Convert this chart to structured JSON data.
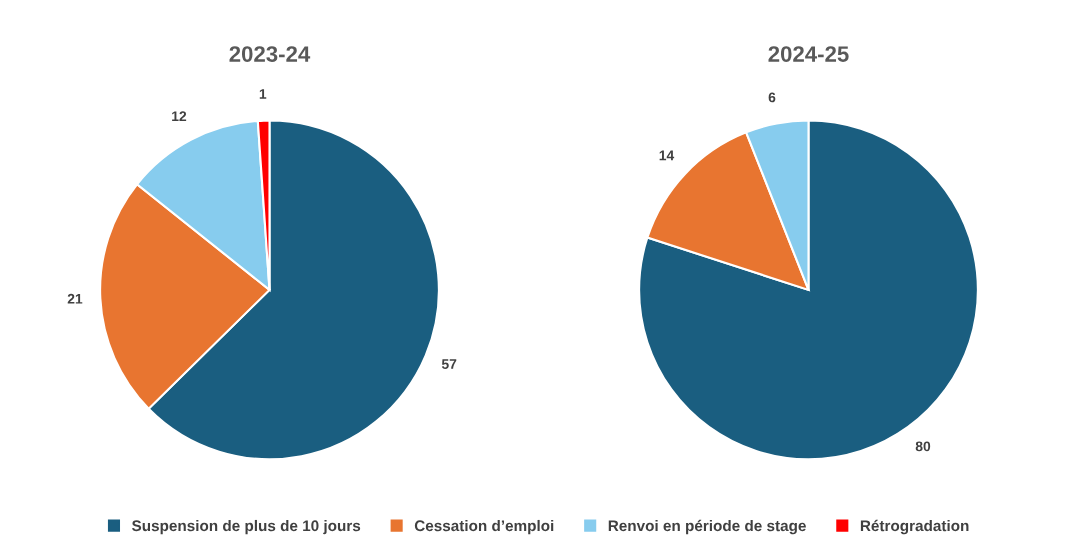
{
  "chart_data": [
    {
      "type": "pie",
      "title": "2023-24",
      "categories": [
        "Suspension de plus de 10 jours",
        "Cessation d’emploi",
        "Renvoi en période de stage",
        "Rétrogradation"
      ],
      "values": [
        57,
        21,
        12,
        1
      ],
      "colors": [
        "#1a5e80",
        "#e87530",
        "#87ccee",
        "#ff0000"
      ],
      "data_labels": true,
      "legend": "bottom"
    },
    {
      "type": "pie",
      "title": "2024-25",
      "categories": [
        null,
        null,
        null
      ],
      "values": [
        80,
        14,
        6
      ],
      "colors": [
        "#1a5e80",
        "#e87530",
        "#87ccee"
      ],
      "data_labels": true
    }
  ]
}
